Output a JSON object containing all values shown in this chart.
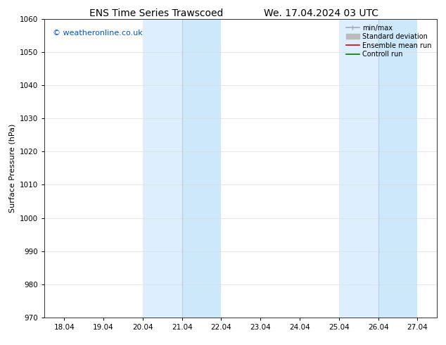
{
  "title_left": "ENS Time Series Trawscoed",
  "title_right": "We. 17.04.2024 03 UTC",
  "ylabel": "Surface Pressure (hPa)",
  "ylim": [
    970,
    1060
  ],
  "yticks": [
    970,
    980,
    990,
    1000,
    1010,
    1020,
    1030,
    1040,
    1050,
    1060
  ],
  "x_labels": [
    "18.04",
    "19.04",
    "20.04",
    "21.04",
    "22.04",
    "23.04",
    "24.04",
    "25.04",
    "26.04",
    "27.04"
  ],
  "x_positions": [
    0,
    1,
    2,
    3,
    4,
    5,
    6,
    7,
    8,
    9
  ],
  "xlim_min": -0.5,
  "xlim_max": 9.5,
  "shaded_bands": [
    {
      "x_start": 2.0,
      "x_end": 3.0,
      "color": "#ddeeff"
    },
    {
      "x_start": 3.0,
      "x_end": 4.0,
      "color": "#cce8fa"
    },
    {
      "x_start": 7.0,
      "x_end": 8.0,
      "color": "#ddeeff"
    },
    {
      "x_start": 8.0,
      "x_end": 9.0,
      "color": "#cce8fa"
    }
  ],
  "divider_lines": [
    {
      "x": 3.0,
      "color": "#b0cfe8",
      "lw": 0.8
    },
    {
      "x": 8.0,
      "color": "#b0cfe8",
      "lw": 0.8
    }
  ],
  "copyright_text": "© weatheronline.co.uk",
  "copyright_color": "#0055cc",
  "legend_entries": [
    {
      "label": "min/max",
      "color": "#aaaaaa",
      "lw": 1.2,
      "style": "solid",
      "type": "minmax"
    },
    {
      "label": "Standard deviation",
      "color": "#bbbbbb",
      "lw": 5,
      "style": "solid",
      "type": "band"
    },
    {
      "label": "Ensemble mean run",
      "color": "#dd0000",
      "lw": 1.2,
      "style": "solid",
      "type": "line"
    },
    {
      "label": "Controll run",
      "color": "#007700",
      "lw": 1.2,
      "style": "solid",
      "type": "line"
    }
  ],
  "bg_color": "#ffffff",
  "grid_color": "#dddddd",
  "title_fontsize": 10,
  "label_fontsize": 8,
  "tick_fontsize": 7.5,
  "copyright_fontsize": 8,
  "legend_fontsize": 7
}
